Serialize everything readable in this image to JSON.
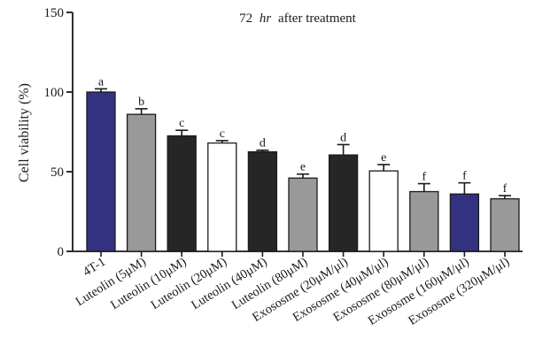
{
  "chart_data": {
    "type": "bar",
    "title": "72 hr after treatment",
    "title_parts": {
      "value": "72",
      "unit": "hr",
      "rest": "after treatment"
    },
    "ylabel": "Cell viability (%)",
    "xlabel": "",
    "ylim": [
      0,
      150
    ],
    "yticks": [
      "0",
      "50",
      "100",
      "150"
    ],
    "grid": false,
    "legend": "none",
    "categories": [
      "4T-1",
      "Luteolin (5μM)",
      "Luteolin (10μM)",
      "Luteolin (20μM)",
      "Luteolin (40μM)",
      "Luteolin (80μM)",
      "Exososme (20μM/μl)",
      "Exososme (40μM/μl)",
      "Exososme (80μM/μl)",
      "Exososme (160μM/μl)",
      "Exososme (320μM/μl)"
    ],
    "values": [
      100,
      86,
      72.5,
      68,
      62.5,
      46,
      60.5,
      50.5,
      37.5,
      36,
      33
    ],
    "errors": [
      2,
      3.5,
      3.5,
      1.5,
      1,
      2.5,
      6.5,
      4,
      5,
      7,
      2
    ],
    "significance": [
      "a",
      "b",
      "c",
      "c",
      "d",
      "e",
      "d",
      "e",
      "f",
      "f",
      "f"
    ],
    "bar_colors": [
      "#323280",
      "#999999",
      "#262626",
      "#ffffff",
      "#262626",
      "#999999",
      "#262626",
      "#ffffff",
      "#999999",
      "#323280",
      "#999999"
    ]
  }
}
